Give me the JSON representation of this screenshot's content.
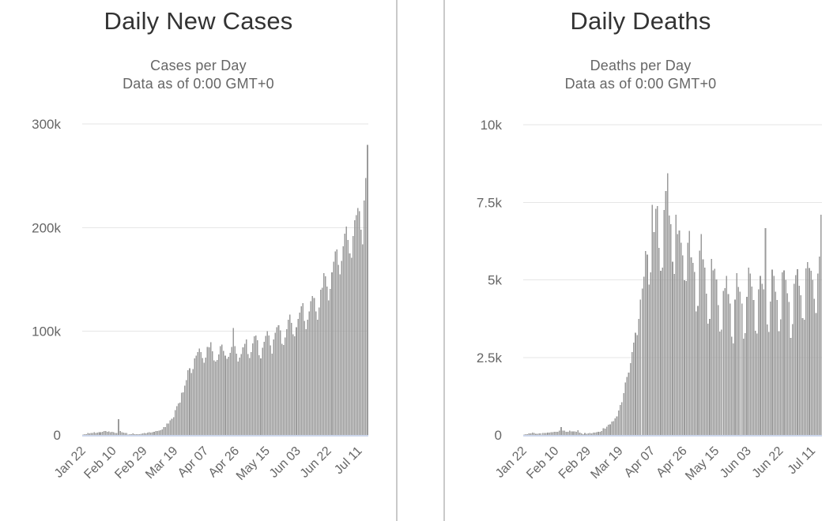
{
  "page": {
    "background": "#ffffff",
    "divider_color": "#c9c9c9"
  },
  "chart_data": [
    {
      "type": "bar",
      "title": "Daily New Cases",
      "subtitle_line1": "Cases per Day",
      "subtitle_line2": "Data as of 0:00 GMT+0",
      "x_start": "Jan 22",
      "x_end": "Jul 16",
      "n_days": 177,
      "x_tick_labels": [
        "Jan 22",
        "Feb 10",
        "Feb 29",
        "Mar 19",
        "Apr 07",
        "Apr 26",
        "May 15",
        "Jun 03",
        "Jun 22",
        "Jul 11"
      ],
      "x_tick_days": [
        0,
        19,
        38,
        57,
        76,
        95,
        114,
        133,
        152,
        171
      ],
      "ylim": [
        0,
        300000
      ],
      "y_ticks": [
        {
          "value": 0,
          "label": "0"
        },
        {
          "value": 100000,
          "label": "100k"
        },
        {
          "value": 200000,
          "label": "200k"
        },
        {
          "value": 300000,
          "label": "300k"
        }
      ],
      "grid": true,
      "legend": "none",
      "bar_color": "#9b9b9b",
      "grid_color": "#e6e6e6",
      "axis_line_color": "#ccd6eb",
      "label_color": "#666666",
      "title_color": "#333333",
      "subtitle_color": "#666666",
      "values": [
        500,
        700,
        900,
        1800,
        1500,
        2000,
        1800,
        2600,
        2000,
        2100,
        2600,
        2800,
        3200,
        3900,
        3700,
        3200,
        3400,
        2700,
        3000,
        2500,
        2000,
        1800,
        15100,
        4000,
        2600,
        2100,
        1900,
        1800,
        500,
        600,
        900,
        1400,
        800,
        700,
        600,
        900,
        1300,
        1400,
        1800,
        1700,
        2200,
        2500,
        2300,
        2700,
        3000,
        4000,
        4000,
        4300,
        4600,
        5300,
        7500,
        7500,
        10900,
        10900,
        13900,
        15500,
        17000,
        24000,
        27800,
        30600,
        31300,
        40800,
        41000,
        47600,
        53000,
        62500,
        64300,
        59800,
        63700,
        74000,
        76600,
        80000,
        83500,
        79800,
        74200,
        69700,
        74800,
        85000,
        84700,
        89600,
        80700,
        71900,
        70800,
        72200,
        77500,
        85700,
        87000,
        81200,
        76400,
        73600,
        75300,
        79300,
        84800,
        103000,
        85800,
        78300,
        71000,
        74700,
        77900,
        84500,
        88000,
        92000,
        78000,
        74300,
        80000,
        88300,
        95000,
        96000,
        91400,
        76800,
        73900,
        84300,
        90000,
        95700,
        100300,
        96100,
        86300,
        78600,
        92000,
        98500,
        104000,
        106000,
        101000,
        88000,
        86900,
        94000,
        102000,
        111000,
        116000,
        108000,
        97000,
        95000,
        104000,
        112000,
        118000,
        124000,
        127000,
        110000,
        102000,
        111000,
        119000,
        129000,
        134000,
        132000,
        119000,
        111000,
        123000,
        140000,
        142000,
        156000,
        153000,
        143000,
        130000,
        141000,
        157000,
        167000,
        177000,
        179000,
        164000,
        155000,
        168000,
        182000,
        194000,
        201000,
        188000,
        175000,
        171000,
        192000,
        207000,
        212000,
        219000,
        216000,
        198000,
        184000,
        226000,
        248000,
        280000
      ]
    },
    {
      "type": "bar",
      "title": "Daily Deaths",
      "subtitle_line1": "Deaths per Day",
      "subtitle_line2": "Data as of 0:00 GMT+0",
      "x_start": "Jan 22",
      "x_end": "Jul 16",
      "n_days": 177,
      "x_tick_labels": [
        "Jan 22",
        "Feb 10",
        "Feb 29",
        "Mar 19",
        "Apr 07",
        "Apr 26",
        "May 15",
        "Jun 03",
        "Jun 22",
        "Jul 11"
      ],
      "x_tick_days": [
        0,
        19,
        38,
        57,
        76,
        95,
        114,
        133,
        152,
        171
      ],
      "ylim": [
        0,
        10000
      ],
      "y_ticks": [
        {
          "value": 0,
          "label": "0"
        },
        {
          "value": 2500,
          "label": "2.5k"
        },
        {
          "value": 5000,
          "label": "5k"
        },
        {
          "value": 7500,
          "label": "7.5k"
        },
        {
          "value": 10000,
          "label": "10k"
        }
      ],
      "grid": true,
      "legend": "none",
      "bar_color": "#9b9b9b",
      "grid_color": "#e6e6e6",
      "axis_line_color": "#ccd6eb",
      "label_color": "#666666",
      "title_color": "#333333",
      "subtitle_color": "#666666",
      "values": [
        17,
        25,
        26,
        56,
        49,
        81,
        66,
        38,
        43,
        46,
        45,
        58,
        64,
        66,
        72,
        73,
        86,
        89,
        97,
        108,
        97,
        146,
        254,
        143,
        143,
        106,
        98,
        136,
        116,
        118,
        109,
        97,
        150,
        71,
        52,
        29,
        61,
        44,
        47,
        58,
        56,
        79,
        81,
        89,
        105,
        98,
        130,
        212,
        201,
        272,
        330,
        350,
        430,
        440,
        540,
        600,
        795,
        963,
        1059,
        1344,
        1690,
        1873,
        2010,
        2319,
        2672,
        2978,
        3297,
        3215,
        3740,
        4367,
        4720,
        5102,
        5925,
        5815,
        4846,
        5237,
        7412,
        6545,
        7295,
        7378,
        6032,
        5294,
        5389,
        7247,
        7861,
        8430,
        7070,
        6800,
        5591,
        5194,
        7100,
        6471,
        6593,
        6198,
        5791,
        4983,
        4961,
        6200,
        6579,
        5731,
        5546,
        5255,
        3984,
        4157,
        5937,
        6472,
        5668,
        5398,
        4560,
        3584,
        3742,
        5675,
        5311,
        5360,
        5009,
        4190,
        3329,
        3402,
        4650,
        4739,
        5127,
        4546,
        4240,
        3163,
        2952,
        4363,
        5222,
        4770,
        4624,
        4240,
        3110,
        3280,
        4451,
        5400,
        5205,
        4788,
        4351,
        3355,
        3268,
        4701,
        5121,
        4879,
        4692,
        6662,
        3562,
        3325,
        4296,
        5326,
        5128,
        4623,
        4348,
        3351,
        3723,
        5238,
        5300,
        5006,
        4565,
        4290,
        3130,
        3574,
        4877,
        5150,
        5349,
        4810,
        4510,
        3770,
        3715,
        5363,
        5570,
        5384,
        5295,
        4998,
        4390,
        3930,
        5200,
        5750,
        7100
      ]
    }
  ]
}
